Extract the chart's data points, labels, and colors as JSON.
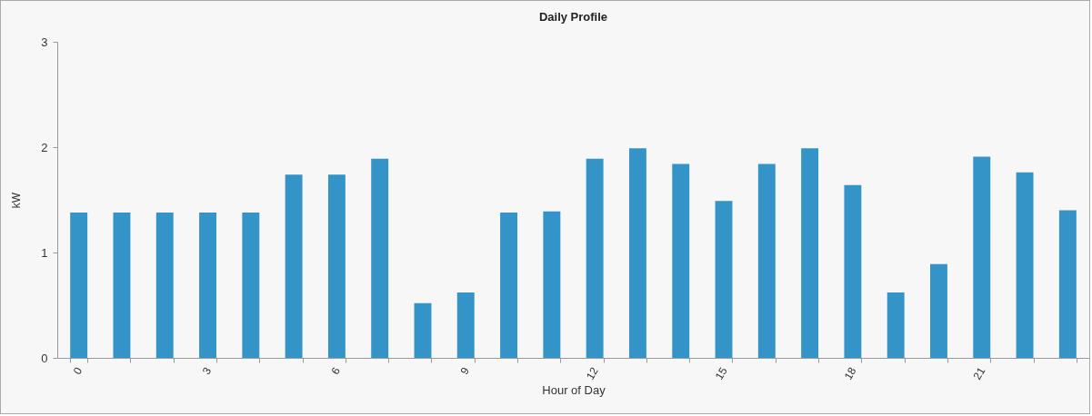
{
  "chart_data": {
    "type": "bar",
    "title": "Daily Profile",
    "xlabel": "Hour of Day",
    "ylabel": "kW",
    "categories": [
      "0",
      null,
      null,
      "3",
      null,
      null,
      "6",
      null,
      null,
      "9",
      null,
      null,
      "12",
      null,
      null,
      "15",
      null,
      null,
      "18",
      null,
      null,
      "21",
      null,
      null
    ],
    "values": [
      1.38,
      1.38,
      1.38,
      1.38,
      1.38,
      1.74,
      1.74,
      1.89,
      0.52,
      0.62,
      1.38,
      1.39,
      1.89,
      1.99,
      1.84,
      1.49,
      1.84,
      1.99,
      1.64,
      0.62,
      0.89,
      1.91,
      1.76,
      1.4
    ],
    "color": "#3494c8",
    "ylim": [
      0,
      3
    ],
    "yticks": [
      0,
      1,
      2,
      3
    ],
    "grid": false
  }
}
